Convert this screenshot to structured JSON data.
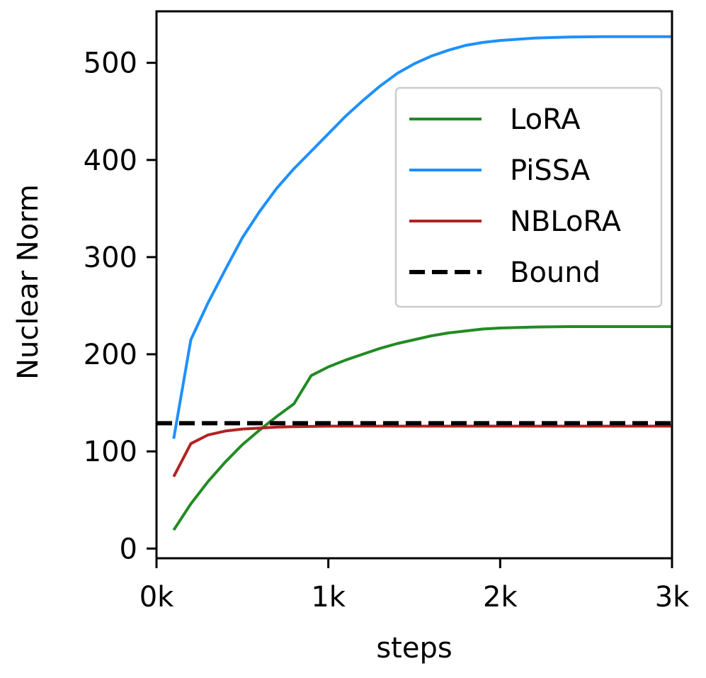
{
  "chart_data": {
    "type": "line",
    "title": "",
    "xlabel": "steps",
    "ylabel": "Nuclear Norm",
    "xlim": [
      0,
      3000
    ],
    "ylim": [
      -10,
      553
    ],
    "xticks": [
      {
        "value": 0,
        "label": "0k"
      },
      {
        "value": 1000,
        "label": "1k"
      },
      {
        "value": 2000,
        "label": "2k"
      },
      {
        "value": 3000,
        "label": "3k"
      }
    ],
    "yticks": [
      {
        "value": 0,
        "label": "0"
      },
      {
        "value": 100,
        "label": "100"
      },
      {
        "value": 200,
        "label": "200"
      },
      {
        "value": 300,
        "label": "300"
      },
      {
        "value": 400,
        "label": "400"
      },
      {
        "value": 500,
        "label": "500"
      }
    ],
    "grid": false,
    "legend_position": "upper-right",
    "series": [
      {
        "name": "LoRA",
        "color": "#228b22",
        "style": "solid",
        "x": [
          100,
          200,
          300,
          400,
          500,
          600,
          700,
          800,
          900,
          1000,
          1100,
          1200,
          1300,
          1400,
          1500,
          1600,
          1700,
          1800,
          1900,
          2000,
          2200,
          2400,
          2600,
          2800,
          3000
        ],
        "y": [
          19,
          46,
          69,
          89,
          107,
          122,
          136,
          149,
          178,
          187,
          194,
          200,
          206,
          211,
          215,
          219,
          222,
          224,
          226,
          227,
          228,
          228.5,
          228.5,
          228.5,
          228.5
        ]
      },
      {
        "name": "PiSSA",
        "color": "#1e90ff",
        "style": "solid",
        "x": [
          100,
          200,
          300,
          400,
          500,
          600,
          700,
          800,
          900,
          1000,
          1100,
          1200,
          1300,
          1400,
          1500,
          1600,
          1700,
          1800,
          1900,
          2000,
          2200,
          2400,
          2600,
          2800,
          3000
        ],
        "y": [
          113,
          215,
          253,
          287,
          320,
          347,
          371,
          391,
          409,
          427,
          445,
          461,
          476,
          489,
          499,
          507,
          513,
          518,
          521,
          523,
          525.5,
          526.5,
          527,
          527,
          527
        ]
      },
      {
        "name": "NBLoRA",
        "color": "#b22222",
        "style": "solid",
        "x": [
          100,
          200,
          300,
          400,
          500,
          600,
          700,
          800,
          1000,
          1500,
          2000,
          2500,
          3000
        ],
        "y": [
          74,
          108,
          117,
          121,
          123,
          124,
          125,
          125.5,
          126,
          126,
          126,
          126,
          126
        ]
      },
      {
        "name": "Bound",
        "color": "#000000",
        "style": "dashed",
        "x": [
          0,
          3000
        ],
        "y": [
          129,
          129
        ]
      }
    ]
  }
}
